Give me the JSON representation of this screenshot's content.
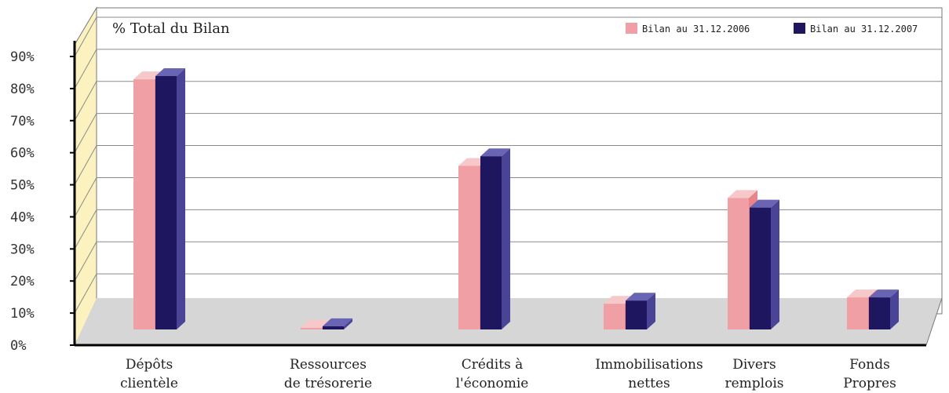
{
  "chart_data": {
    "type": "bar",
    "title": "% Total du Bilan",
    "categories": [
      [
        "Dépôts",
        "clientèle"
      ],
      [
        "Ressources",
        "de trésorerie"
      ],
      [
        "Crédits à",
        "l'économie"
      ],
      [
        "Immobilisations",
        "nettes"
      ],
      [
        "Divers",
        "remplois"
      ],
      [
        "Fonds",
        "Propres"
      ]
    ],
    "series": [
      {
        "name": "Bilan au 31.12.2006",
        "values": [
          78,
          0.5,
          51,
          8,
          41,
          10
        ]
      },
      {
        "name": "Bilan au 31.12.2007",
        "values": [
          79,
          1,
          54,
          9,
          38,
          10
        ]
      }
    ],
    "ylim": [
      0,
      90
    ],
    "yticks": [
      "0%",
      "10%",
      "20%",
      "30%",
      "40%",
      "50%",
      "60%",
      "70%",
      "80%",
      "90%"
    ],
    "grid": true,
    "legend_position": "top-right",
    "colors": {
      "series_2006": "#f0a0a4",
      "series_2006_top": "#f7c8ca",
      "series_2006_side": "#e8848a",
      "series_2007": "#1f1660",
      "series_2007_top": "#6a64b4",
      "series_2007_side": "#4a4496",
      "back_wall": "#ffffff",
      "side_wall": "#fbf2bf",
      "floor": "#d6d6d6",
      "gridline": "#8a8a8a"
    }
  }
}
